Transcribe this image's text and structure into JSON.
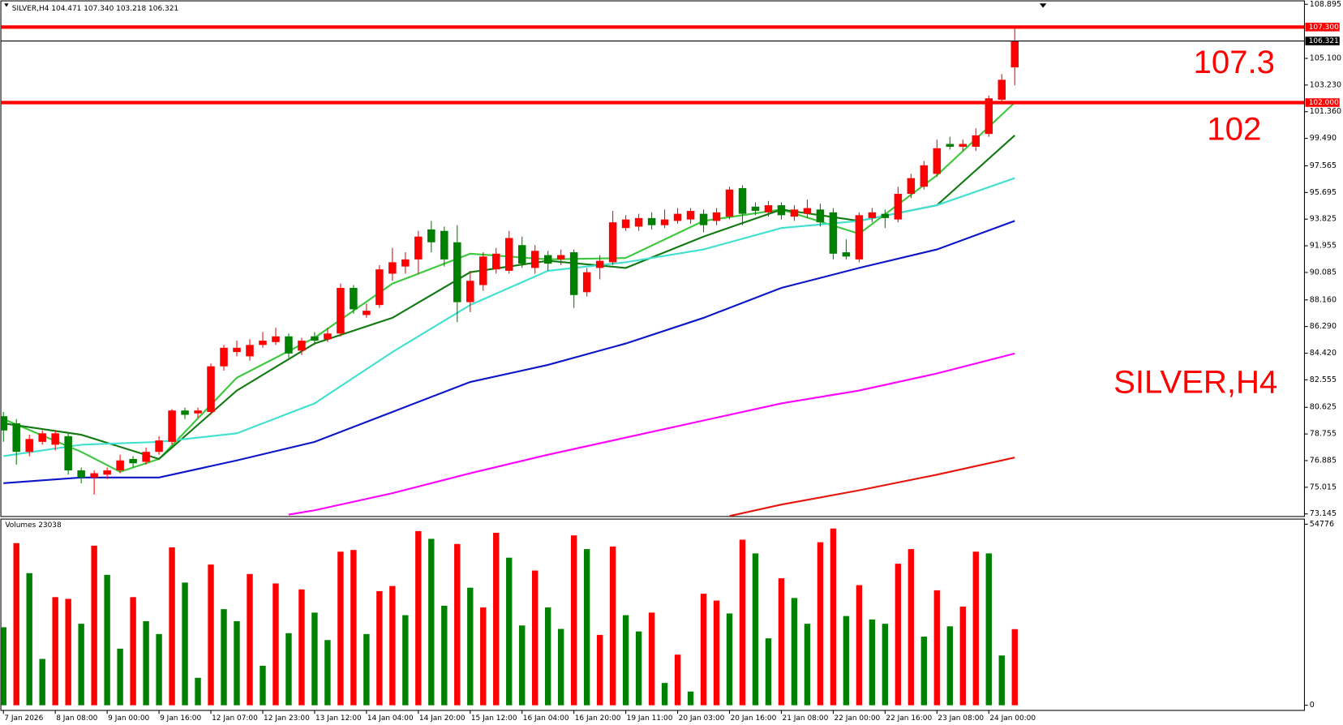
{
  "chart_data": {
    "type": "candlestick",
    "info_label": "SILVER,H4 104.471 107.340 103.218 106.321",
    "up_color": "#ff0000",
    "down_color": "#008000",
    "categories": [
      "7 Jan 2026",
      null,
      null,
      null,
      "8 Jan 08:00",
      null,
      null,
      null,
      "9 Jan 00:00",
      null,
      null,
      null,
      "9 Jan 16:00",
      null,
      null,
      null,
      "12 Jan 07:00",
      null,
      null,
      null,
      "12 Jan 23:00",
      null,
      null,
      null,
      "13 Jan 12:00",
      null,
      null,
      null,
      "14 Jan 04:00",
      null,
      null,
      null,
      "14 Jan 20:00",
      null,
      null,
      null,
      "15 Jan 12:00",
      null,
      null,
      null,
      "16 Jan 04:00",
      null,
      null,
      null,
      "16 Jan 20:00",
      null,
      null,
      null,
      "19 Jan 11:00",
      null,
      null,
      null,
      "20 Jan 03:00",
      null,
      null,
      null,
      "20 Jan 16:00",
      null,
      null,
      null,
      "21 Jan 08:00",
      null,
      null,
      null,
      "22 Jan 00:00",
      null,
      null,
      null,
      "22 Jan 16:00",
      null,
      null,
      null,
      "23 Jan 08:00",
      null,
      null,
      null,
      "24 Jan 00:00",
      null,
      null
    ],
    "candles": {
      "open": [
        80.0,
        79.5,
        77.5,
        78.2,
        78.0,
        78.6,
        76.2,
        75.7,
        75.9,
        76.2,
        77.0,
        76.8,
        77.5,
        78.2,
        80.4,
        80.2,
        80.3,
        83.5,
        84.5,
        84.2,
        85.0,
        85.2,
        85.6,
        84.6,
        85.6,
        85.4,
        85.8,
        89.0,
        87.1,
        87.8,
        90.0,
        90.5,
        91.0,
        93.1,
        93.0,
        92.2,
        88.0,
        89.2,
        90.3,
        90.2,
        92.0,
        90.4,
        91.3,
        91.0,
        91.5,
        88.7,
        90.4,
        90.8,
        93.2,
        93.3,
        93.9,
        93.4,
        93.7,
        93.8,
        94.2,
        93.7,
        94.0,
        96.0,
        94.7,
        94.3,
        94.8,
        94.0,
        94.2,
        94.5,
        94.3,
        91.5,
        91.0,
        93.9,
        94.2,
        93.8,
        95.6,
        96.1,
        97.0,
        99.1,
        98.9,
        98.9,
        99.8,
        102.2,
        104.471
      ],
      "high": [
        80.3,
        79.8,
        78.7,
        79.0,
        79.0,
        78.9,
        76.4,
        76.2,
        76.4,
        77.3,
        77.2,
        77.8,
        78.6,
        80.5,
        80.6,
        80.6,
        83.7,
        85.0,
        85.3,
        85.4,
        85.9,
        86.2,
        85.8,
        85.5,
        85.9,
        86.2,
        89.3,
        89.2,
        87.9,
        90.6,
        91.8,
        91.5,
        93.0,
        93.7,
        93.3,
        93.4,
        90.2,
        91.5,
        91.8,
        93.0,
        92.6,
        92.0,
        91.6,
        91.7,
        91.7,
        90.4,
        91.3,
        94.4,
        94.1,
        94.2,
        94.3,
        94.5,
        94.6,
        94.6,
        94.5,
        94.6,
        96.1,
        96.2,
        95.0,
        95.1,
        95.0,
        94.8,
        95.2,
        94.9,
        94.6,
        92.4,
        94.3,
        94.6,
        94.5,
        96.1,
        97.0,
        97.9,
        99.4,
        99.6,
        99.4,
        100.2,
        102.5,
        104.0,
        107.34
      ],
      "low": [
        78.2,
        76.6,
        77.2,
        78.0,
        77.6,
        75.9,
        75.3,
        74.5,
        75.6,
        76.0,
        76.4,
        76.6,
        77.3,
        78.0,
        79.8,
        79.9,
        80.1,
        83.2,
        84.2,
        83.9,
        84.8,
        85.0,
        84.1,
        84.3,
        85.0,
        85.2,
        85.6,
        87.2,
        86.9,
        87.6,
        89.5,
        90.0,
        90.0,
        91.5,
        90.5,
        86.6,
        87.3,
        88.8,
        90.0,
        90.0,
        90.4,
        90.0,
        90.2,
        90.6,
        87.6,
        88.4,
        89.6,
        90.6,
        93.0,
        93.0,
        93.1,
        93.2,
        93.5,
        93.5,
        92.9,
        93.4,
        93.8,
        93.4,
        94.1,
        94.0,
        93.8,
        93.7,
        93.9,
        93.3,
        91.0,
        91.0,
        90.8,
        93.6,
        93.2,
        93.6,
        95.3,
        95.9,
        96.8,
        98.7,
        98.6,
        98.6,
        99.6,
        101.9,
        103.218
      ],
      "close": [
        79.0,
        77.5,
        78.4,
        78.8,
        78.8,
        76.2,
        75.7,
        76.0,
        76.2,
        76.9,
        76.7,
        77.5,
        78.3,
        80.4,
        80.1,
        80.4,
        83.5,
        84.8,
        84.8,
        85.0,
        85.3,
        85.6,
        84.4,
        85.3,
        85.3,
        85.8,
        89.0,
        87.5,
        87.4,
        90.3,
        90.8,
        91.0,
        92.6,
        92.2,
        91.0,
        88.0,
        89.5,
        91.2,
        91.4,
        92.5,
        90.7,
        91.6,
        90.7,
        91.3,
        88.5,
        90.1,
        90.9,
        93.6,
        93.8,
        93.9,
        93.4,
        93.8,
        94.2,
        94.4,
        93.4,
        94.3,
        95.9,
        94.2,
        94.4,
        94.8,
        94.1,
        94.5,
        94.6,
        93.6,
        91.4,
        91.2,
        94.1,
        94.3,
        93.9,
        95.6,
        96.7,
        97.6,
        98.8,
        98.9,
        99.1,
        99.7,
        102.3,
        103.6,
        106.321
      ]
    },
    "ma": [
      {
        "color": "#3cc83c",
        "x": [
          0,
          6,
          9,
          12,
          18,
          24,
          30,
          36,
          42,
          48,
          54,
          60,
          66,
          72,
          78
        ],
        "values": [
          79.8,
          77.5,
          76.1,
          77.0,
          82.7,
          85.5,
          89.3,
          91.4,
          91.0,
          91.1,
          93.7,
          94.5,
          92.8,
          96.9,
          102.0
        ]
      },
      {
        "color": "#137a13",
        "x": [
          0,
          6,
          12,
          18,
          24,
          30,
          36,
          42,
          48,
          54,
          60,
          66,
          72,
          78
        ],
        "values": [
          79.5,
          78.7,
          77.0,
          81.8,
          85.1,
          86.9,
          90.1,
          90.9,
          90.4,
          92.6,
          94.5,
          93.7,
          94.8,
          99.7
        ]
      },
      {
        "color": "#40e0d0",
        "x": [
          0,
          6,
          12,
          18,
          24,
          30,
          36,
          42,
          48,
          54,
          60,
          66,
          72,
          78
        ],
        "values": [
          77.2,
          78.0,
          78.2,
          78.8,
          80.9,
          84.5,
          87.8,
          90.2,
          90.8,
          91.7,
          93.2,
          93.7,
          94.8,
          96.7
        ]
      },
      {
        "color": "#0b16c9",
        "x": [
          0,
          6,
          12,
          18,
          24,
          30,
          36,
          42,
          48,
          54,
          60,
          66,
          72,
          78
        ],
        "values": [
          75.3,
          75.7,
          75.7,
          76.9,
          78.2,
          80.3,
          82.4,
          83.6,
          85.1,
          86.9,
          89.0,
          90.4,
          91.7,
          93.7
        ]
      },
      {
        "color": "#ff00ff",
        "x": [
          22,
          24,
          30,
          36,
          42,
          48,
          54,
          60,
          66,
          72,
          78
        ],
        "values": [
          73.1,
          73.4,
          74.6,
          76.0,
          77.3,
          78.5,
          79.7,
          80.9,
          81.8,
          83.0,
          84.4
        ]
      },
      {
        "color": "#e8140c",
        "x": [
          56,
          60,
          66,
          72,
          78
        ],
        "values": [
          73.0,
          73.8,
          74.8,
          75.9,
          77.1
        ]
      }
    ],
    "ylim": [
      73.145,
      108.895
    ],
    "yticks": [
      108.895,
      {
        "value": 105.1,
        "label": "105.100"
      },
      {
        "value": 103.23,
        "label": "103.230"
      },
      {
        "value": 101.36,
        "label": "101.360"
      },
      {
        "value": 99.49,
        "label": "99.490"
      },
      97.565,
      95.695,
      93.825,
      91.955,
      90.085,
      {
        "value": 88.16,
        "label": "88.160"
      },
      {
        "value": 86.29,
        "label": "86.290"
      },
      {
        "value": 84.42,
        "label": "84.420"
      },
      82.555,
      80.625,
      78.755,
      76.885,
      75.015,
      73.145
    ],
    "hlines": [
      {
        "value": 107.3,
        "label": "107.300",
        "color": "#ff0000"
      },
      {
        "value": 102,
        "label": "102.000",
        "color": "#ff0000"
      }
    ],
    "bid": {
      "value": 106.321,
      "label": "106.321",
      "color": "#000000"
    },
    "annotations": [
      "107.3",
      "102",
      "SILVER,H4"
    ],
    "annotation_color": "#ff0000",
    "volume": {
      "title": "Volumes 23038",
      "ylim": [
        0,
        54776
      ],
      "yticks": [
        54776,
        0
      ],
      "values": [
        23600,
        49060,
        39980,
        14020,
        32710,
        32190,
        24660,
        48290,
        39460,
        17130,
        32710,
        25440,
        21550,
        47770,
        37120,
        8310,
        42570,
        29080,
        25440,
        39720,
        11940,
        36860,
        21810,
        35050,
        28040,
        19730,
        46470,
        46990,
        21550,
        34530,
        36080,
        27260,
        52700,
        50360,
        30110,
        48800,
        35570,
        29590,
        52180,
        44650,
        24140,
        40760,
        29590,
        23100,
        51400,
        47250,
        21290,
        48030,
        27260,
        22330,
        28040,
        6750,
        15320,
        4150,
        33750,
        31670,
        27780,
        50100,
        45950,
        20250,
        38420,
        32450,
        24660,
        49330,
        53480,
        27000,
        36340,
        25960,
        24660,
        42830,
        47250,
        20770,
        34790,
        23880,
        29850,
        46470,
        45950,
        15060,
        23038
      ],
      "colors": [
        "#008000",
        "#ff0000",
        "#008000",
        "#008000",
        "#ff0000",
        "#ff0000",
        "#008000",
        "#ff0000",
        "#008000",
        "#008000",
        "#ff0000",
        "#008000",
        "#008000",
        "#ff0000",
        "#008000",
        "#008000",
        "#ff0000",
        "#008000",
        "#008000",
        "#ff0000",
        "#008000",
        "#ff0000",
        "#008000",
        "#ff0000",
        "#008000",
        "#008000",
        "#ff0000",
        "#ff0000",
        "#008000",
        "#ff0000",
        "#ff0000",
        "#008000",
        "#ff0000",
        "#008000",
        "#008000",
        "#ff0000",
        "#008000",
        "#ff0000",
        "#ff0000",
        "#008000",
        "#008000",
        "#ff0000",
        "#008000",
        "#008000",
        "#ff0000",
        "#008000",
        "#ff0000",
        "#ff0000",
        "#008000",
        "#008000",
        "#ff0000",
        "#008000",
        "#ff0000",
        "#008000",
        "#ff0000",
        "#ff0000",
        "#008000",
        "#ff0000",
        "#008000",
        "#008000",
        "#ff0000",
        "#008000",
        "#008000",
        "#ff0000",
        "#ff0000",
        "#008000",
        "#ff0000",
        "#008000",
        "#008000",
        "#ff0000",
        "#ff0000",
        "#008000",
        "#ff0000",
        "#008000",
        "#ff0000",
        "#ff0000",
        "#008000",
        "#008000",
        "#ff0000"
      ]
    }
  }
}
